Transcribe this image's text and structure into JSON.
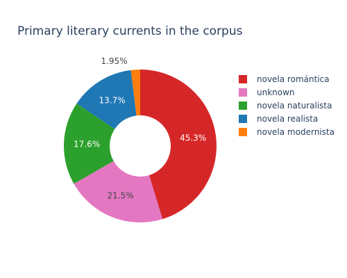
{
  "chart_data": {
    "type": "pie",
    "hole": 0.4,
    "title": "Primary literary currents in the corpus",
    "legend_position": "right",
    "slices": [
      {
        "label": "novela romántica",
        "value": 45.3,
        "display": "45.3%",
        "color": "#d62728"
      },
      {
        "label": "unknown",
        "value": 21.5,
        "display": "21.5%",
        "color": "#e377c2"
      },
      {
        "label": "novela naturalista",
        "value": 17.6,
        "display": "17.6%",
        "color": "#2ca02c"
      },
      {
        "label": "novela realista",
        "value": 13.7,
        "display": "13.7%",
        "color": "#1f77b4"
      },
      {
        "label": "novela modernista",
        "value": 1.95,
        "display": "1.95%",
        "color": "#ff7f0e"
      }
    ]
  }
}
